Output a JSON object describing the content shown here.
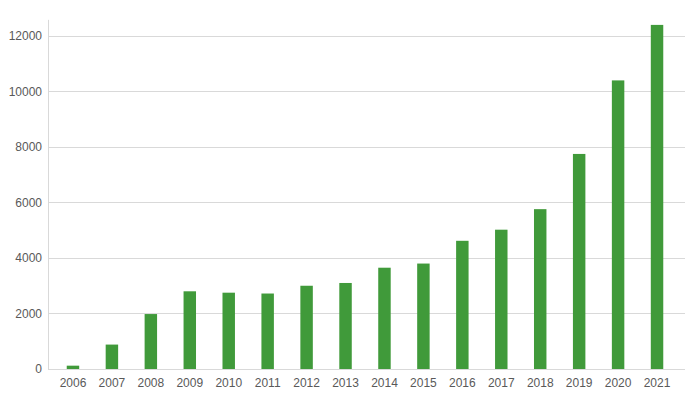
{
  "chart_data": {
    "type": "bar",
    "categories": [
      "2006",
      "2007",
      "2008",
      "2009",
      "2010",
      "2011",
      "2012",
      "2013",
      "2014",
      "2015",
      "2016",
      "2017",
      "2018",
      "2019",
      "2020",
      "2021"
    ],
    "values": [
      120,
      880,
      1980,
      2800,
      2750,
      2720,
      3000,
      3100,
      3650,
      3800,
      4620,
      5020,
      5760,
      7750,
      10400,
      12400
    ],
    "color": "#409a3a",
    "ylim": [
      0,
      12600
    ],
    "yticks": [
      0,
      2000,
      4000,
      6000,
      8000,
      10000,
      12000
    ],
    "grid": true
  }
}
